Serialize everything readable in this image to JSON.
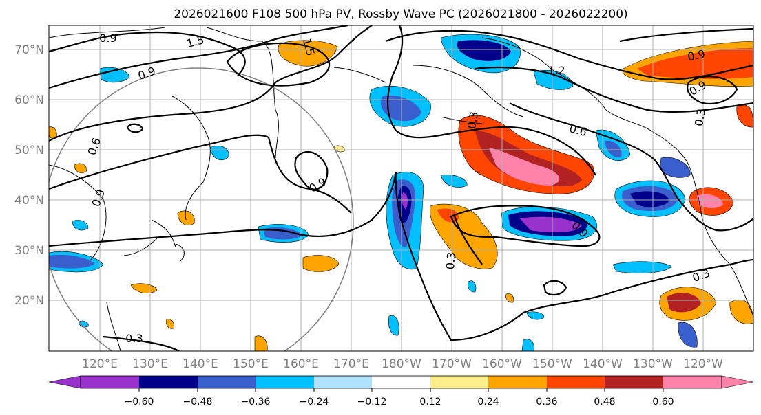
{
  "title": "2026021600 F108 500 hPa PV, Rossby Wave PC (2026021800 - 2026022200)",
  "lat_labels": [
    "70°N",
    "60°N",
    "50°N",
    "40°N",
    "30°N",
    "20°N"
  ],
  "lon_labels": [
    "120°E",
    "130°E",
    "140°E",
    "150°E",
    "160°E",
    "170°E",
    "180°W",
    "170°W",
    "160°W",
    "150°W",
    "140°W",
    "130°W",
    "120°W"
  ],
  "colorbar": {
    "ticks": [
      "−0.60",
      "−0.48",
      "−0.36",
      "−0.24",
      "−0.12",
      "0.12",
      "0.24",
      "0.36",
      "0.48",
      "0.60"
    ],
    "colors": [
      "#9932cc",
      "#00008b",
      "#3a5fcd",
      "#00bfff",
      "#b0e2ff",
      "#ffffff",
      "#ffec8b",
      "#ffa500",
      "#ff4500",
      "#b22222",
      "#ff82ab"
    ]
  },
  "contour_labels": [
    "0.9",
    "0.9",
    "1.5",
    "1.5",
    "0.9",
    "0.6",
    "0.9",
    "0.3",
    "0.3",
    "0.3",
    "0.9",
    "1.2",
    "0.6",
    "0.9",
    "0.9",
    "0.3",
    "0.3"
  ]
}
